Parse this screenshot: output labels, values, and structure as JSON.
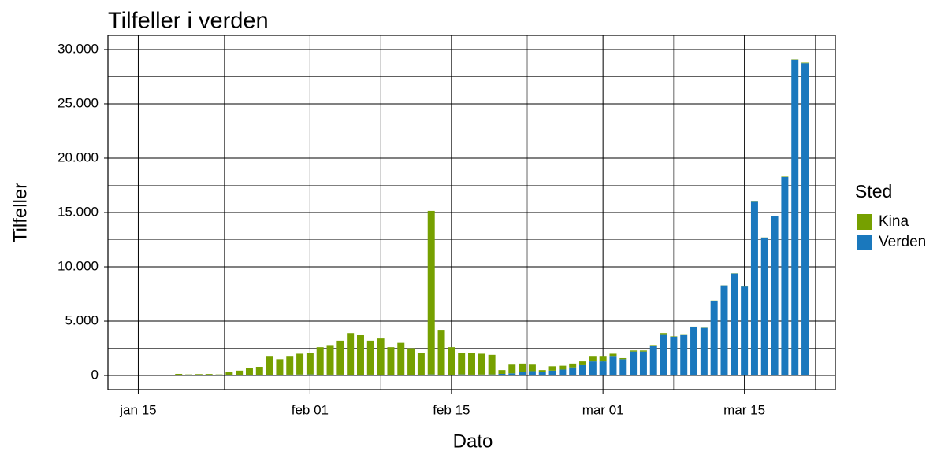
{
  "chart_data": {
    "type": "stacked_bar",
    "title": "Tilfeller i verden",
    "x_label": "Dato",
    "y_label": "Tilfeller",
    "legend_title": "Sted",
    "x": [
      "jan 19",
      "jan 20",
      "jan 21",
      "jan 22",
      "jan 23",
      "jan 24",
      "jan 25",
      "jan 26",
      "jan 27",
      "jan 28",
      "jan 29",
      "jan 30",
      "jan 31",
      "feb 01",
      "feb 02",
      "feb 03",
      "feb 04",
      "feb 05",
      "feb 06",
      "feb 07",
      "feb 08",
      "feb 09",
      "feb 10",
      "feb 11",
      "feb 12",
      "feb 13",
      "feb 14",
      "feb 15",
      "feb 16",
      "feb 17",
      "feb 18",
      "feb 19",
      "feb 20",
      "feb 21",
      "feb 22",
      "feb 23",
      "feb 24",
      "feb 25",
      "feb 26",
      "feb 27",
      "feb 28",
      "feb 29",
      "mar 01",
      "mar 02",
      "mar 03",
      "mar 04",
      "mar 05",
      "mar 06",
      "mar 07",
      "mar 08",
      "mar 09",
      "mar 10",
      "mar 11",
      "mar 12",
      "mar 13",
      "mar 14",
      "mar 15",
      "mar 16",
      "mar 17",
      "mar 18",
      "mar 19",
      "mar 20",
      "mar 21"
    ],
    "series": [
      {
        "name": "Verden",
        "color": "#1a78bd",
        "values": [
          0,
          5,
          10,
          15,
          20,
          30,
          40,
          50,
          50,
          60,
          70,
          80,
          90,
          100,
          60,
          80,
          80,
          70,
          60,
          80,
          70,
          60,
          70,
          60,
          40,
          100,
          60,
          70,
          100,
          80,
          90,
          100,
          150,
          200,
          300,
          400,
          300,
          450,
          550,
          750,
          950,
          1300,
          1300,
          1800,
          1500,
          2200,
          2200,
          2700,
          3800,
          3560,
          3780,
          4475,
          4380,
          6885,
          8290,
          9380,
          8180,
          15980,
          12690,
          14680,
          18260,
          29070,
          28750
        ]
      },
      {
        "name": "Kina",
        "color": "#76a000",
        "values": [
          150,
          95,
          120,
          125,
          80,
          270,
          410,
          650,
          750,
          1740,
          1430,
          1720,
          1910,
          2000,
          2540,
          2720,
          3120,
          3830,
          3640,
          3120,
          3330,
          2540,
          2930,
          2440,
          2060,
          15050,
          4140,
          2530,
          2000,
          2020,
          1910,
          1800,
          350,
          800,
          800,
          600,
          200,
          400,
          350,
          350,
          350,
          500,
          500,
          200,
          100,
          100,
          100,
          100,
          100,
          40,
          20,
          25,
          20,
          15,
          10,
          20,
          20,
          20,
          10,
          20,
          40,
          30,
          50
        ]
      }
    ],
    "legend_order": [
      "Kina",
      "Verden"
    ],
    "xlim": [
      "jan 12",
      "mar 24"
    ],
    "xticks": [
      "jan 15",
      "feb 01",
      "feb 15",
      "mar 01",
      "mar 15"
    ],
    "ylim": [
      -1300,
      31300
    ],
    "yticks": [
      0,
      {
        "value": 5000,
        "label": "5.000"
      },
      {
        "value": 10000,
        "label": "10.000"
      },
      {
        "value": 15000,
        "label": "15.000"
      },
      {
        "value": 20000,
        "label": "20.000"
      },
      {
        "value": 25000,
        "label": "25.000"
      },
      {
        "value": 30000,
        "label": "30.000"
      }
    ],
    "grid": true,
    "minor_grid": true,
    "legend": "right"
  }
}
